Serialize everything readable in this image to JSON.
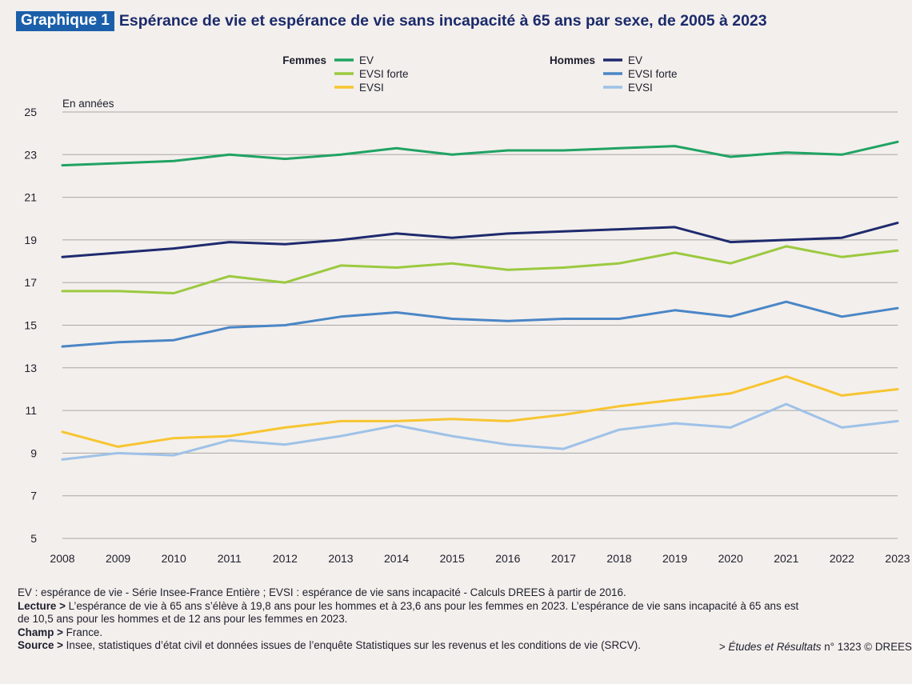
{
  "header": {
    "tag": "Graphique 1",
    "title": "Espérance de vie et espérance de vie sans incapacité à 65 ans par sexe, de 2005 à 2023"
  },
  "legend": {
    "women_label": "Femmes",
    "men_label": "Hommes"
  },
  "chart_data": {
    "type": "line",
    "unit_label": "En années",
    "x": [
      2008,
      2009,
      2010,
      2011,
      2012,
      2013,
      2014,
      2015,
      2016,
      2017,
      2018,
      2019,
      2020,
      2021,
      2022,
      2023
    ],
    "ylim": [
      5,
      25
    ],
    "yticks": [
      5,
      7,
      9,
      11,
      13,
      15,
      17,
      19,
      21,
      23,
      25
    ],
    "grid": true,
    "legend_position": "top",
    "series": [
      {
        "name": "EV",
        "group": "Femmes",
        "color": "#1fa363",
        "values": [
          22.5,
          22.6,
          22.7,
          23.0,
          22.8,
          23.0,
          23.3,
          23.0,
          23.2,
          23.2,
          23.3,
          23.4,
          22.9,
          23.1,
          23.0,
          23.6
        ]
      },
      {
        "name": "EVSI forte",
        "group": "Femmes",
        "color": "#9bc93f",
        "values": [
          16.6,
          16.6,
          16.5,
          17.3,
          17.0,
          17.8,
          17.7,
          17.9,
          17.6,
          17.7,
          17.9,
          18.4,
          17.9,
          18.7,
          18.2,
          18.5
        ]
      },
      {
        "name": "EVSI",
        "group": "Femmes",
        "color": "#f7c531",
        "values": [
          10.0,
          9.3,
          9.7,
          9.8,
          10.2,
          10.5,
          10.5,
          10.6,
          10.5,
          10.8,
          11.2,
          11.5,
          11.8,
          12.6,
          11.7,
          12.0
        ]
      },
      {
        "name": "EV",
        "group": "Hommes",
        "color": "#1f2a6e",
        "values": [
          18.2,
          18.4,
          18.6,
          18.9,
          18.8,
          19.0,
          19.3,
          19.1,
          19.3,
          19.4,
          19.5,
          19.6,
          18.9,
          19.0,
          19.1,
          19.8
        ]
      },
      {
        "name": "EVSI forte",
        "group": "Hommes",
        "color": "#4a86c6",
        "values": [
          14.0,
          14.2,
          14.3,
          14.9,
          15.0,
          15.4,
          15.6,
          15.3,
          15.2,
          15.3,
          15.3,
          15.7,
          15.4,
          16.1,
          15.4,
          15.8
        ]
      },
      {
        "name": "EVSI",
        "group": "Hommes",
        "color": "#9ec2e8",
        "values": [
          8.7,
          9.0,
          8.9,
          9.6,
          9.4,
          9.8,
          10.3,
          9.8,
          9.4,
          9.2,
          10.1,
          10.4,
          10.2,
          11.3,
          10.2,
          10.5
        ]
      }
    ]
  },
  "notes": {
    "line1": "EV : espérance de vie - Série Insee-France Entière ; EVSI : espérance de vie sans incapacité - Calculs DREES à partir de 2016.",
    "lecture_label": "Lecture >",
    "lecture_text": " L’espérance de vie à 65 ans s’élève à 19,8 ans pour les hommes et à 23,6 ans pour les femmes en 2023. L’espérance de vie sans incapacité à 65 ans est",
    "lecture_line2": "de 10,5 ans pour les hommes et de 12 ans pour les femmes en 2023.",
    "champ_label": "Champ >",
    "champ_text": " France.",
    "source_label": "Source >",
    "source_text": " Insee, statistiques d’état civil et données issues de l’enquête Statistiques sur les revenus et les conditions de vie (SRCV)."
  },
  "credit": {
    "prefix": "> ",
    "publication": "Études et Résultats",
    "suffix": " n° 1323 © DREES"
  }
}
